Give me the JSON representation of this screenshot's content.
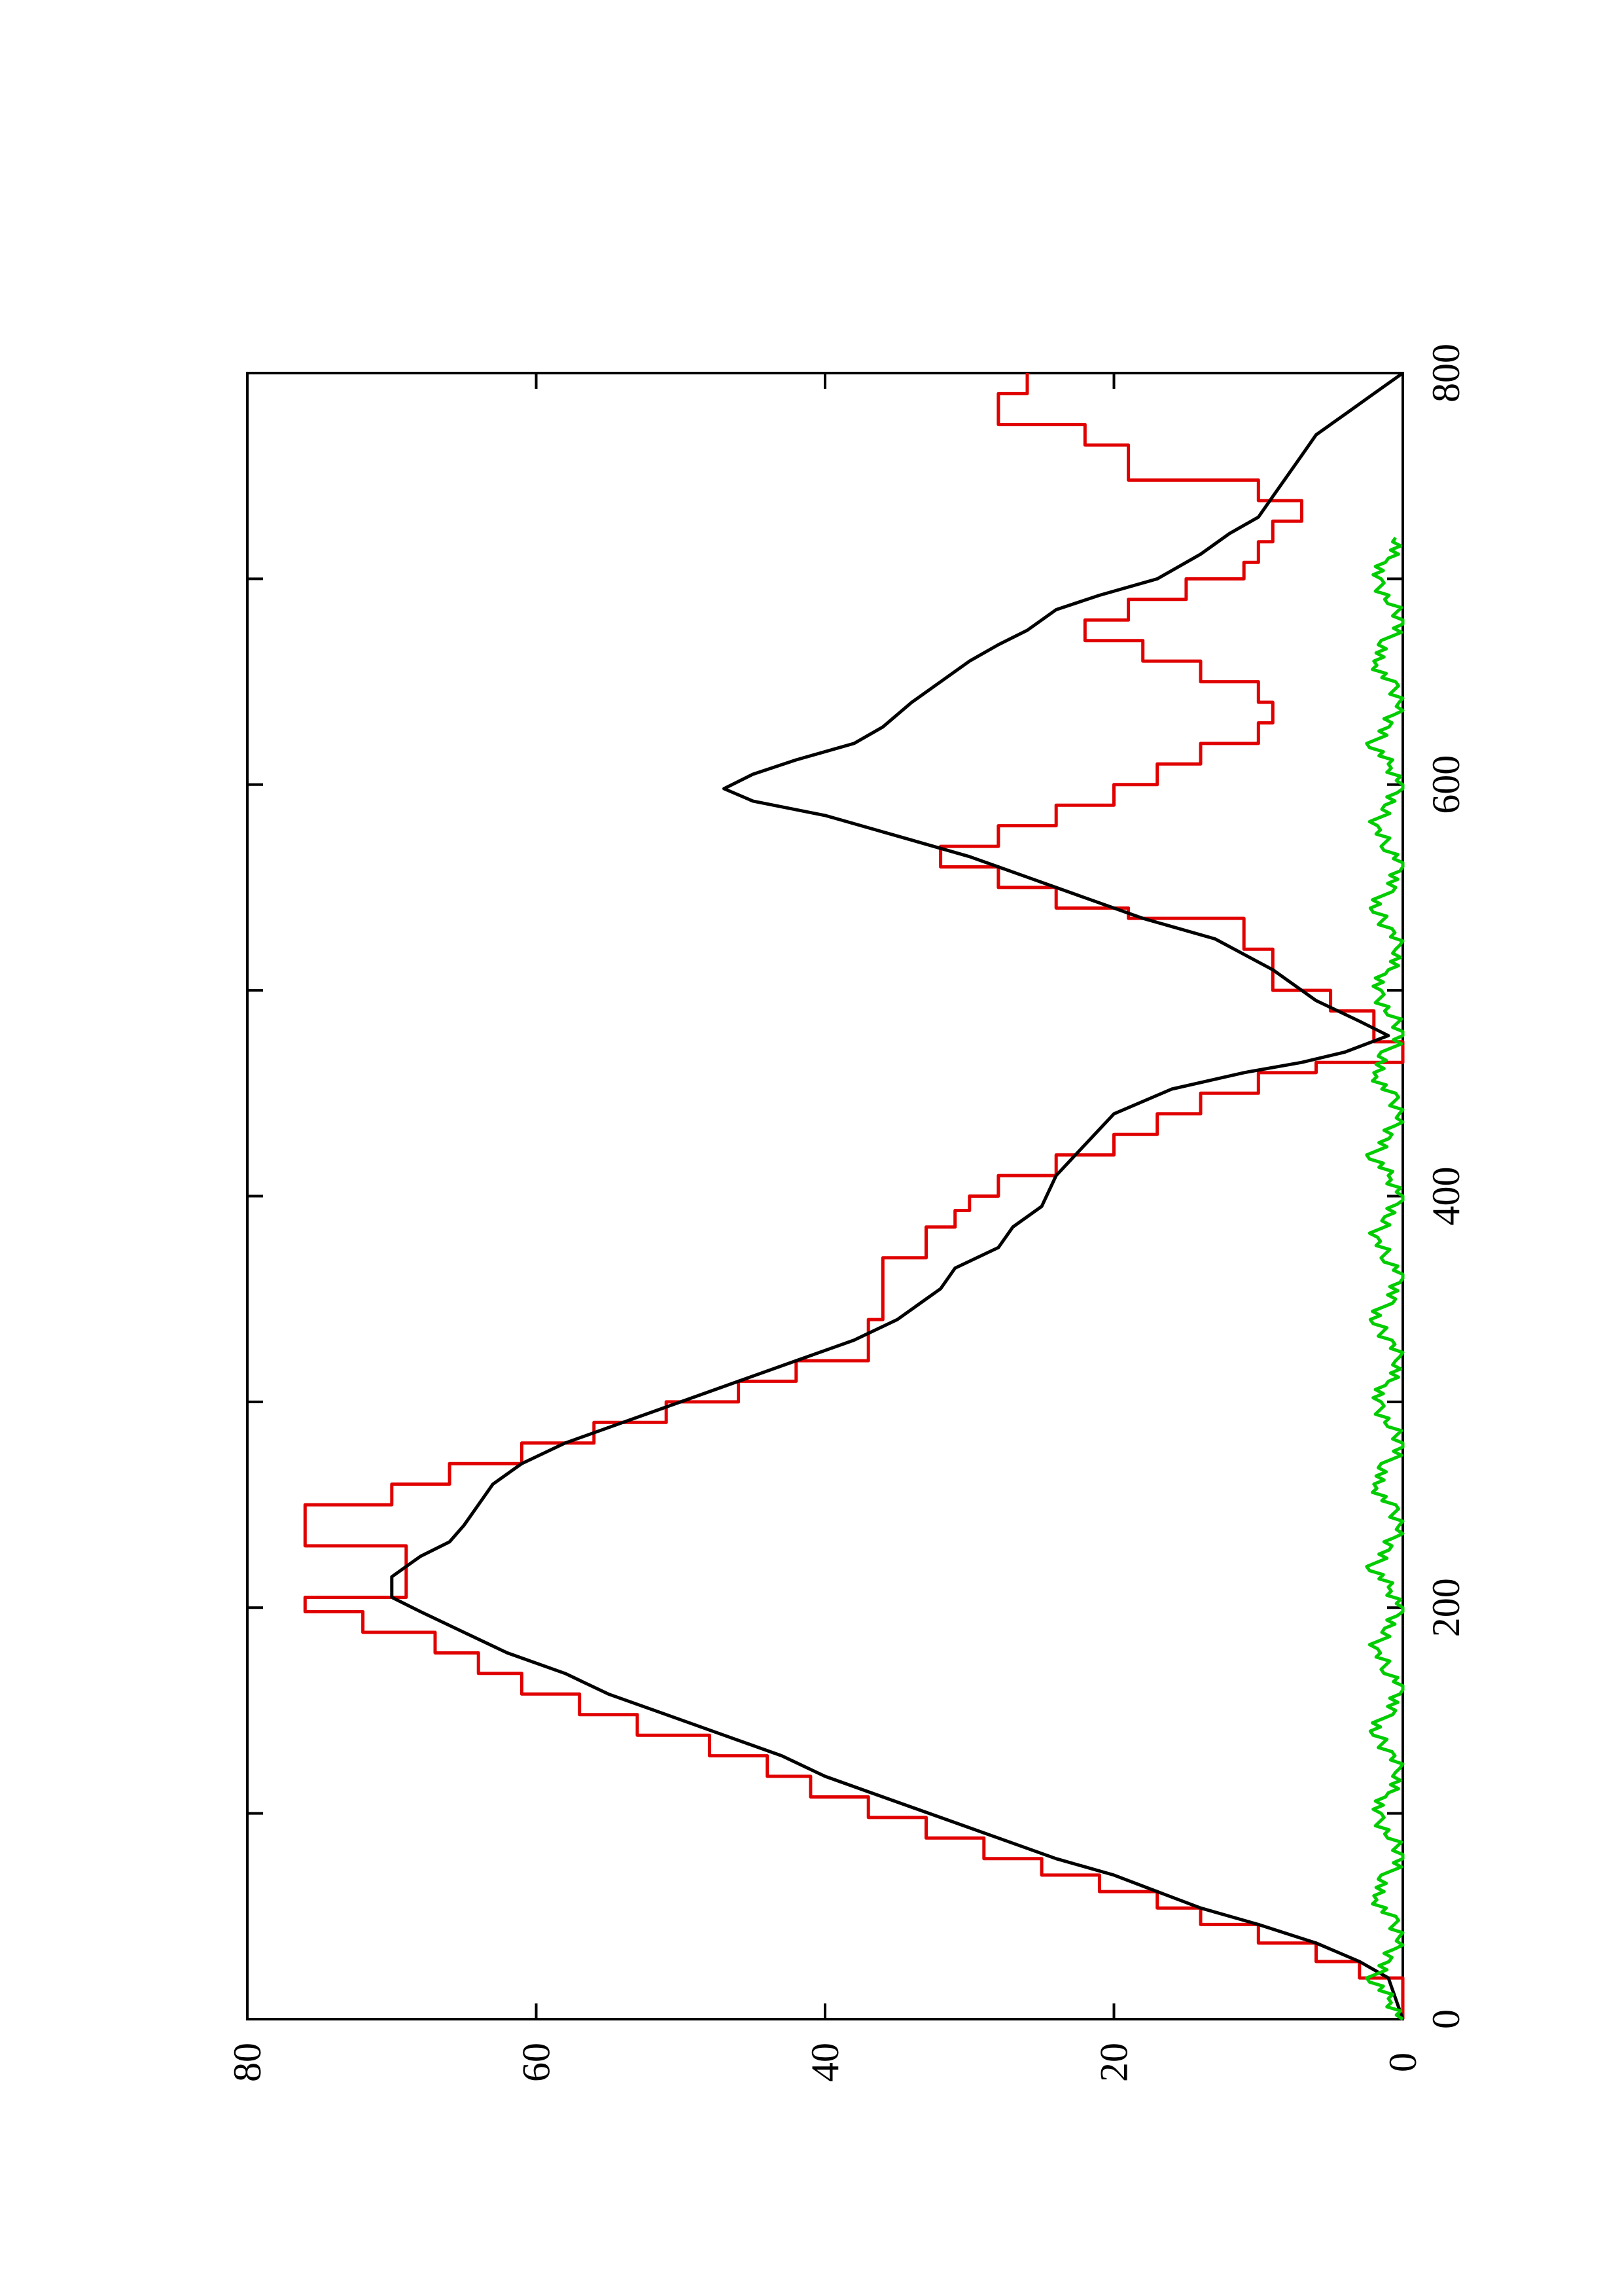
{
  "chart_data": {
    "type": "line",
    "title": "",
    "xlabel": "",
    "ylabel": "",
    "xlim": [
      0,
      800
    ],
    "ylim": [
      0,
      80
    ],
    "x_ticks": [
      0,
      100,
      200,
      300,
      400,
      500,
      600,
      700,
      800
    ],
    "x_tick_labels": [
      "0",
      "",
      "200",
      "",
      "400",
      "",
      "600",
      "",
      "800"
    ],
    "y_ticks": [
      0,
      20,
      40,
      60,
      80
    ],
    "y_tick_labels": [
      "0",
      "20",
      "40",
      "60",
      "80"
    ],
    "orientation": "rotated 90 degrees counter-clockwise (x axis runs bottom-to-top along the right side)",
    "grid": false,
    "legend": "none",
    "series": [
      {
        "color": "#e00000",
        "style": "step",
        "points": [
          [
            0,
            0
          ],
          [
            20,
            0
          ],
          [
            20,
            3
          ],
          [
            28,
            3
          ],
          [
            28,
            6
          ],
          [
            37,
            6
          ],
          [
            37,
            10
          ],
          [
            46,
            10
          ],
          [
            46,
            14
          ],
          [
            54,
            14
          ],
          [
            54,
            17
          ],
          [
            62,
            17
          ],
          [
            62,
            21
          ],
          [
            70,
            21
          ],
          [
            70,
            25
          ],
          [
            78,
            25
          ],
          [
            78,
            29
          ],
          [
            88,
            29
          ],
          [
            88,
            33
          ],
          [
            98,
            33
          ],
          [
            98,
            37
          ],
          [
            108,
            37
          ],
          [
            108,
            41
          ],
          [
            118,
            41
          ],
          [
            118,
            44
          ],
          [
            128,
            44
          ],
          [
            128,
            48
          ],
          [
            138,
            48
          ],
          [
            138,
            53
          ],
          [
            148,
            53
          ],
          [
            148,
            57
          ],
          [
            158,
            57
          ],
          [
            158,
            61
          ],
          [
            168,
            61
          ],
          [
            168,
            64
          ],
          [
            178,
            64
          ],
          [
            178,
            67
          ],
          [
            188,
            67
          ],
          [
            188,
            72
          ],
          [
            198,
            72
          ],
          [
            198,
            76
          ],
          [
            205,
            76
          ],
          [
            205,
            69
          ],
          [
            230,
            69
          ],
          [
            230,
            76
          ],
          [
            250,
            76
          ],
          [
            250,
            70
          ],
          [
            260,
            70
          ],
          [
            260,
            66
          ],
          [
            270,
            66
          ],
          [
            270,
            61
          ],
          [
            280,
            61
          ],
          [
            280,
            56
          ],
          [
            290,
            56
          ],
          [
            290,
            51
          ],
          [
            300,
            51
          ],
          [
            300,
            46
          ],
          [
            310,
            46
          ],
          [
            310,
            42
          ],
          [
            320,
            42
          ],
          [
            320,
            37
          ],
          [
            340,
            37
          ],
          [
            340,
            36
          ],
          [
            370,
            36
          ],
          [
            370,
            33
          ],
          [
            385,
            33
          ],
          [
            385,
            31
          ],
          [
            393,
            31
          ],
          [
            393,
            30
          ],
          [
            400,
            30
          ],
          [
            400,
            28
          ],
          [
            410,
            28
          ],
          [
            410,
            24
          ],
          [
            420,
            24
          ],
          [
            420,
            20
          ],
          [
            430,
            20
          ],
          [
            430,
            17
          ],
          [
            440,
            17
          ],
          [
            440,
            14
          ],
          [
            450,
            14
          ],
          [
            450,
            10
          ],
          [
            460,
            10
          ],
          [
            460,
            6
          ],
          [
            465,
            6
          ],
          [
            465,
            0
          ],
          [
            475,
            0
          ],
          [
            475,
            2
          ],
          [
            490,
            2
          ],
          [
            490,
            5
          ],
          [
            500,
            5
          ],
          [
            500,
            9
          ],
          [
            520,
            9
          ],
          [
            520,
            11
          ],
          [
            535,
            11
          ],
          [
            535,
            19
          ],
          [
            540,
            19
          ],
          [
            540,
            24
          ],
          [
            550,
            24
          ],
          [
            550,
            28
          ],
          [
            560,
            28
          ],
          [
            560,
            32
          ],
          [
            570,
            32
          ],
          [
            570,
            28
          ],
          [
            580,
            28
          ],
          [
            580,
            24
          ],
          [
            590,
            24
          ],
          [
            590,
            20
          ],
          [
            600,
            20
          ],
          [
            600,
            17
          ],
          [
            610,
            17
          ],
          [
            610,
            14
          ],
          [
            620,
            14
          ],
          [
            620,
            10
          ],
          [
            630,
            10
          ],
          [
            630,
            9
          ],
          [
            640,
            9
          ],
          [
            640,
            10
          ],
          [
            650,
            10
          ],
          [
            650,
            14
          ],
          [
            660,
            14
          ],
          [
            660,
            18
          ],
          [
            670,
            18
          ],
          [
            670,
            22
          ],
          [
            680,
            22
          ],
          [
            680,
            19
          ],
          [
            690,
            19
          ],
          [
            690,
            15
          ],
          [
            700,
            15
          ],
          [
            700,
            11
          ],
          [
            708,
            11
          ],
          [
            708,
            10
          ],
          [
            718,
            10
          ],
          [
            718,
            9
          ],
          [
            728,
            9
          ],
          [
            728,
            7
          ],
          [
            738,
            7
          ],
          [
            738,
            10
          ],
          [
            748,
            10
          ],
          [
            748,
            19
          ],
          [
            765,
            19
          ],
          [
            765,
            22
          ],
          [
            775,
            22
          ],
          [
            775,
            28
          ],
          [
            790,
            28
          ],
          [
            790,
            26
          ],
          [
            800,
            26
          ]
        ]
      },
      {
        "color": "#000000",
        "style": "line",
        "points": [
          [
            0,
            0
          ],
          [
            20,
            1
          ],
          [
            28,
            3
          ],
          [
            37,
            6
          ],
          [
            46,
            10
          ],
          [
            54,
            14
          ],
          [
            62,
            17
          ],
          [
            70,
            20
          ],
          [
            78,
            24
          ],
          [
            88,
            28
          ],
          [
            98,
            32
          ],
          [
            108,
            36
          ],
          [
            118,
            40
          ],
          [
            128,
            43
          ],
          [
            138,
            47
          ],
          [
            148,
            51
          ],
          [
            158,
            55
          ],
          [
            168,
            58
          ],
          [
            178,
            62
          ],
          [
            188,
            65
          ],
          [
            198,
            68
          ],
          [
            205,
            70
          ],
          [
            215,
            70
          ],
          [
            225,
            68
          ],
          [
            232,
            66
          ],
          [
            240,
            65
          ],
          [
            250,
            64
          ],
          [
            260,
            63
          ],
          [
            270,
            61
          ],
          [
            280,
            58
          ],
          [
            290,
            54
          ],
          [
            300,
            50
          ],
          [
            310,
            46
          ],
          [
            320,
            42
          ],
          [
            330,
            38
          ],
          [
            340,
            35
          ],
          [
            350,
            33
          ],
          [
            355,
            32
          ],
          [
            365,
            31
          ],
          [
            375,
            28
          ],
          [
            385,
            27
          ],
          [
            395,
            25
          ],
          [
            410,
            24
          ],
          [
            425,
            22
          ],
          [
            440,
            20
          ],
          [
            452,
            16
          ],
          [
            460,
            11
          ],
          [
            465,
            7
          ],
          [
            470,
            4
          ],
          [
            478,
            1
          ],
          [
            485,
            3
          ],
          [
            495,
            6
          ],
          [
            510,
            9
          ],
          [
            525,
            13
          ],
          [
            535,
            18
          ],
          [
            545,
            22
          ],
          [
            555,
            26
          ],
          [
            565,
            30
          ],
          [
            575,
            35
          ],
          [
            585,
            40
          ],
          [
            592,
            45
          ],
          [
            598,
            47
          ],
          [
            605,
            45
          ],
          [
            612,
            42
          ],
          [
            620,
            38
          ],
          [
            628,
            36
          ],
          [
            640,
            34
          ],
          [
            650,
            32
          ],
          [
            660,
            30
          ],
          [
            668,
            28
          ],
          [
            675,
            26
          ],
          [
            685,
            24
          ],
          [
            692,
            21
          ],
          [
            700,
            17
          ],
          [
            712,
            14
          ],
          [
            722,
            12
          ],
          [
            730,
            10
          ],
          [
            740,
            9
          ],
          [
            750,
            8
          ],
          [
            760,
            7
          ],
          [
            770,
            6
          ],
          [
            780,
            4
          ],
          [
            790,
            2
          ],
          [
            800,
            0
          ]
        ]
      },
      {
        "color": "#00cc00",
        "style": "noise",
        "points": [
          [
            0,
            0
          ],
          [
            10,
            1
          ],
          [
            20,
            2
          ],
          [
            30,
            1
          ],
          [
            40,
            0
          ],
          [
            50,
            1
          ],
          [
            60,
            2
          ],
          [
            70,
            1
          ],
          [
            80,
            0
          ],
          [
            90,
            1
          ],
          [
            100,
            2
          ],
          [
            110,
            1
          ],
          [
            120,
            0
          ],
          [
            130,
            1
          ],
          [
            140,
            2
          ],
          [
            150,
            1
          ],
          [
            160,
            0
          ],
          [
            170,
            1
          ],
          [
            180,
            2
          ],
          [
            190,
            1
          ],
          [
            200,
            0
          ],
          [
            210,
            1
          ],
          [
            220,
            2
          ],
          [
            230,
            1
          ],
          [
            240,
            0
          ],
          [
            250,
            1
          ],
          [
            260,
            2
          ],
          [
            270,
            1
          ],
          [
            280,
            0
          ],
          [
            290,
            1
          ],
          [
            300,
            2
          ],
          [
            310,
            1
          ],
          [
            320,
            0
          ],
          [
            330,
            1
          ],
          [
            340,
            2
          ],
          [
            350,
            1
          ],
          [
            360,
            0
          ],
          [
            370,
            1
          ],
          [
            380,
            2
          ],
          [
            390,
            1
          ],
          [
            400,
            0
          ],
          [
            410,
            1
          ],
          [
            420,
            2
          ],
          [
            430,
            1
          ],
          [
            440,
            0
          ],
          [
            450,
            1
          ],
          [
            460,
            2
          ],
          [
            470,
            1
          ],
          [
            480,
            0
          ],
          [
            490,
            1
          ],
          [
            500,
            2
          ],
          [
            510,
            1
          ],
          [
            520,
            0
          ],
          [
            530,
            1
          ],
          [
            540,
            2
          ],
          [
            550,
            1
          ],
          [
            560,
            0
          ],
          [
            570,
            1
          ],
          [
            580,
            2
          ],
          [
            590,
            1
          ],
          [
            600,
            0
          ],
          [
            610,
            1
          ],
          [
            620,
            2
          ],
          [
            630,
            1
          ],
          [
            640,
            0
          ],
          [
            650,
            1
          ],
          [
            660,
            2
          ],
          [
            670,
            1
          ],
          [
            680,
            0
          ],
          [
            690,
            1
          ],
          [
            700,
            2
          ],
          [
            710,
            1
          ],
          [
            720,
            0
          ],
          [
            730,
            1
          ],
          [
            740,
            2
          ],
          [
            750,
            1
          ],
          [
            760,
            0
          ],
          [
            770,
            1
          ],
          [
            780,
            2
          ],
          [
            790,
            1
          ],
          [
            800,
            0
          ]
        ]
      }
    ]
  }
}
